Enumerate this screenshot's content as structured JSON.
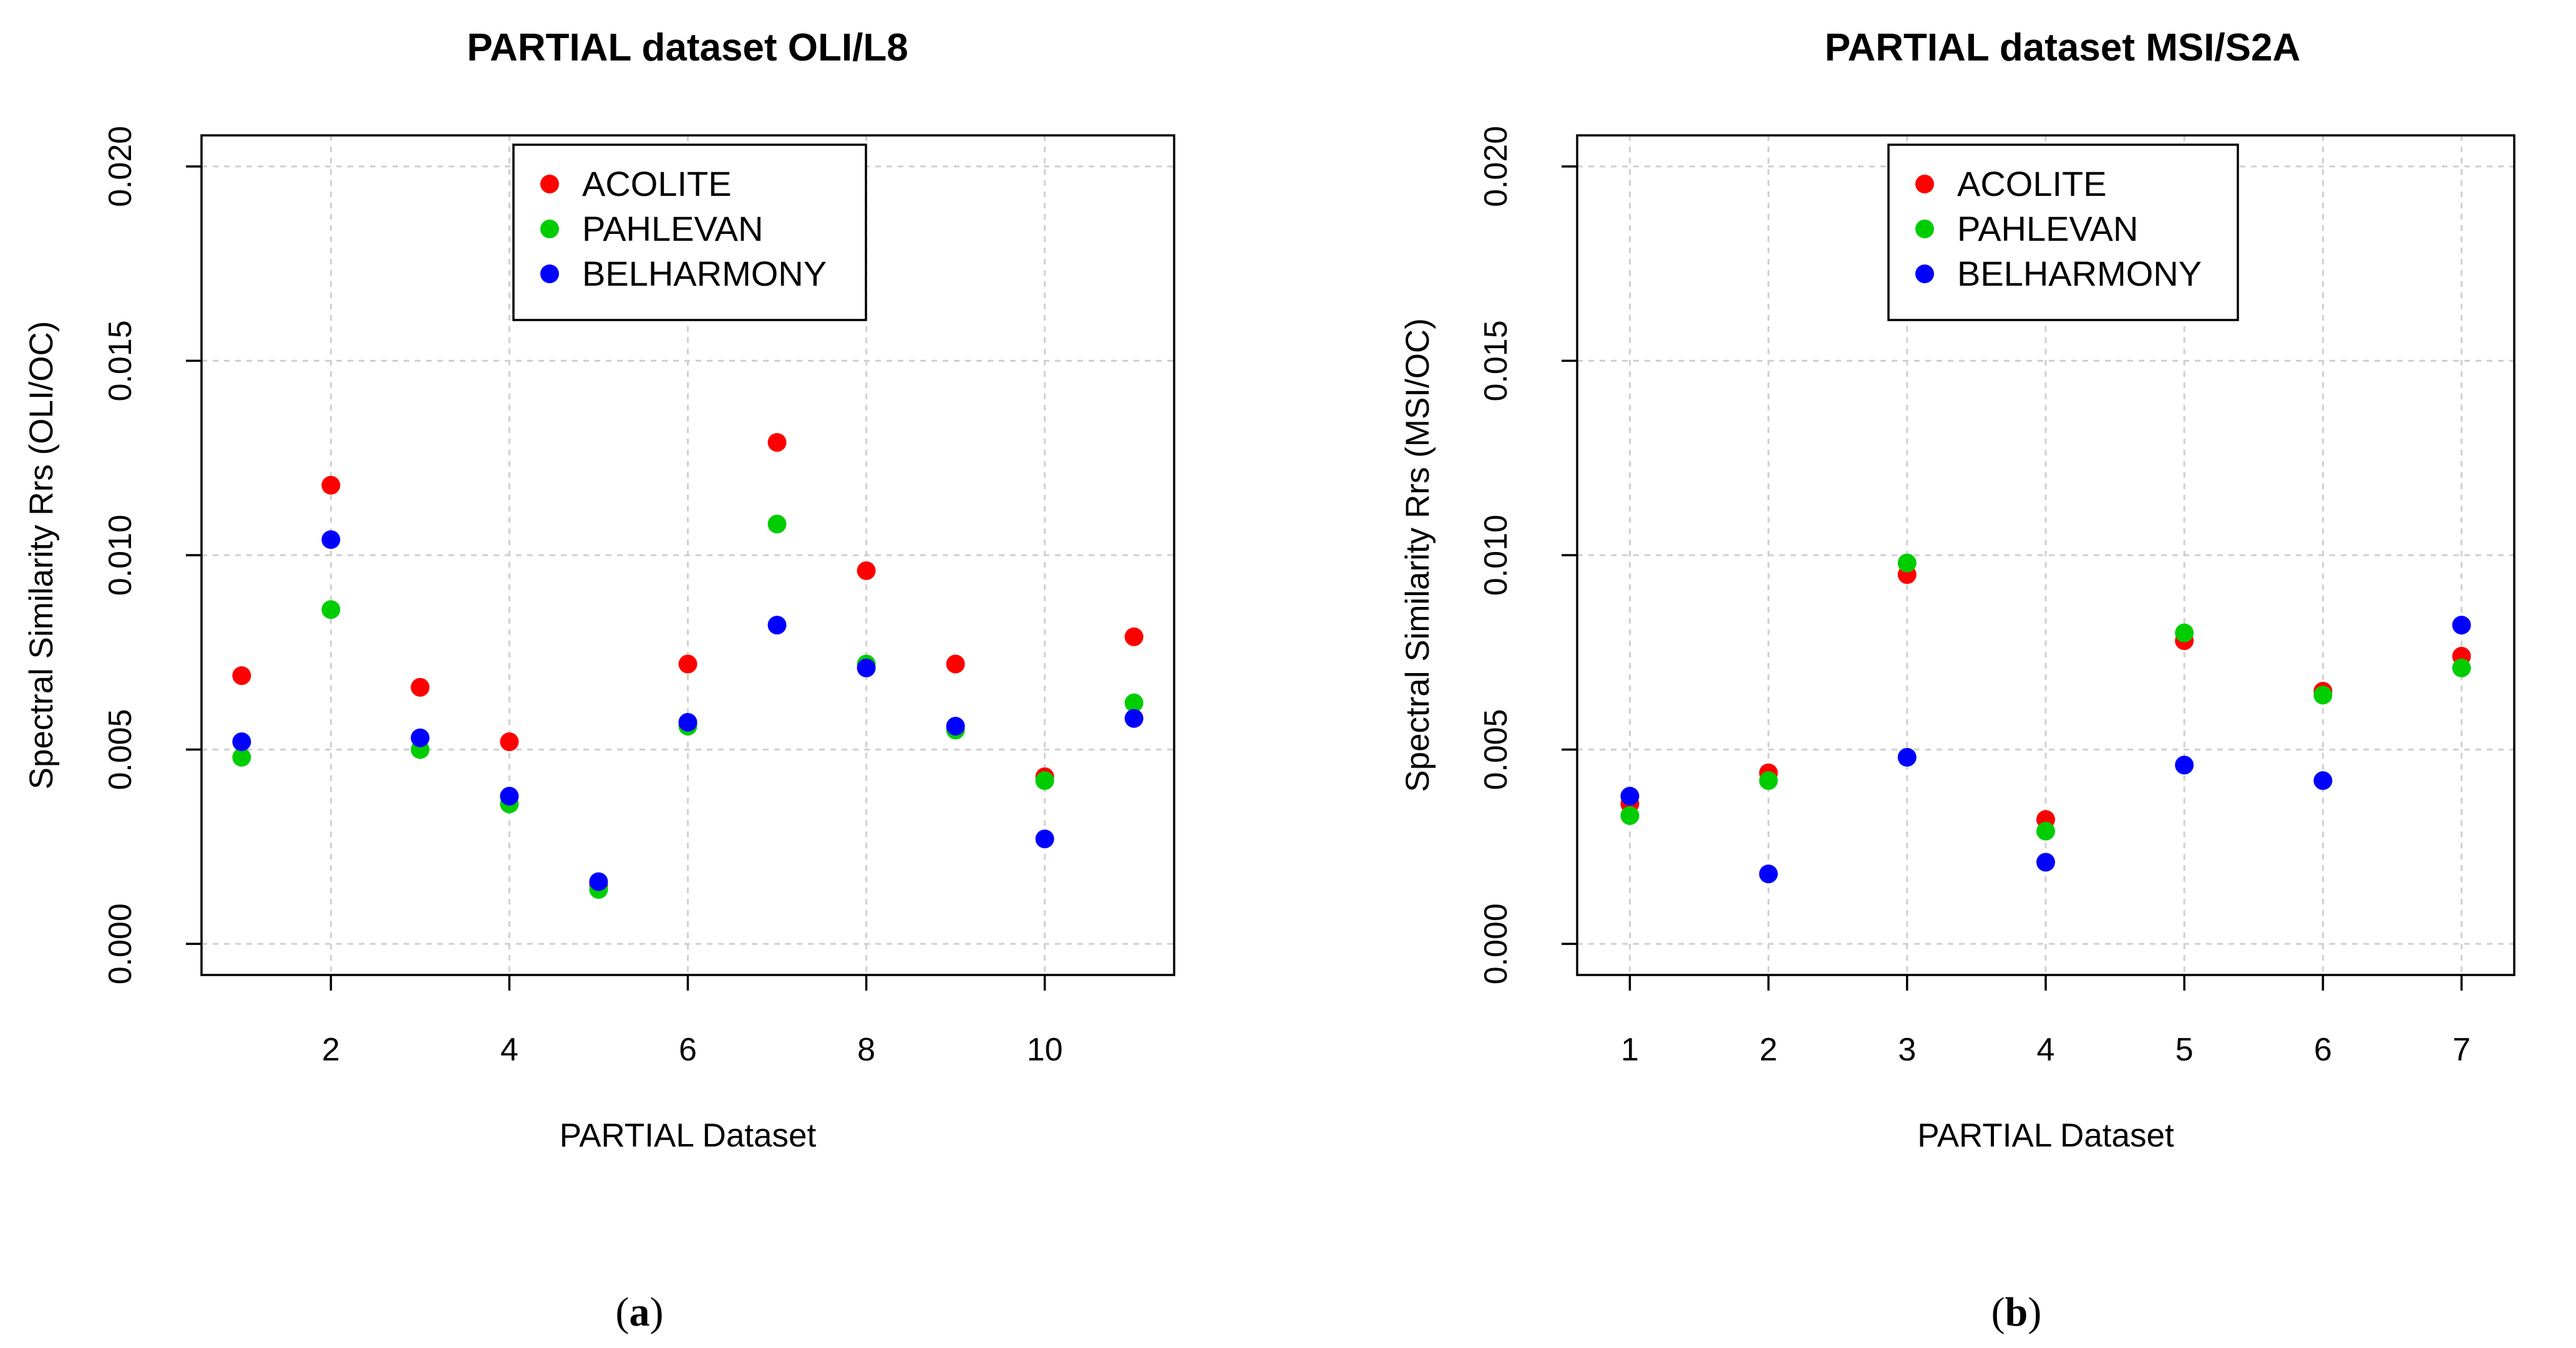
{
  "chart_data": [
    {
      "type": "scatter",
      "title": "PARTIAL dataset OLI/L8",
      "xlabel": "PARTIAL Dataset",
      "ylabel": "Spectral Similarity Rrs (OLI/OC)",
      "caption": "a",
      "xlim": [
        0.55,
        11.45
      ],
      "ylim": [
        -0.0008,
        0.0208
      ],
      "xticks": [
        2,
        4,
        6,
        8,
        10
      ],
      "xtick_labels": [
        "2",
        "4",
        "6",
        "8",
        "10"
      ],
      "yticks": [
        0.0,
        0.005,
        0.01,
        0.015,
        0.02
      ],
      "ytick_labels": [
        "0.000",
        "0.005",
        "0.010",
        "0.015",
        "0.020"
      ],
      "grid": true,
      "legend": {
        "placement": "top-center",
        "entries": [
          "ACOLITE",
          "PAHLEVAN",
          "BELHARMONY"
        ]
      },
      "x": [
        1,
        2,
        3,
        4,
        5,
        6,
        7,
        8,
        9,
        10,
        11
      ],
      "series": [
        {
          "name": "ACOLITE",
          "color": "#ff0000",
          "values": [
            0.0069,
            0.0118,
            0.0066,
            0.0052,
            0.0015,
            0.0072,
            0.0129,
            0.0096,
            0.0072,
            0.0043,
            0.0079
          ]
        },
        {
          "name": "PAHLEVAN",
          "color": "#00cd00",
          "values": [
            0.0048,
            0.0086,
            0.005,
            0.0036,
            0.0014,
            0.0056,
            0.0108,
            0.0072,
            0.0055,
            0.0042,
            0.0062
          ]
        },
        {
          "name": "BELHARMONY",
          "color": "#0000ff",
          "values": [
            0.0052,
            0.0104,
            0.0053,
            0.0038,
            0.0016,
            0.0057,
            0.0082,
            0.0071,
            0.0056,
            0.0027,
            0.0058
          ]
        }
      ]
    },
    {
      "type": "scatter",
      "title": "PARTIAL dataset MSI/S2A",
      "xlabel": "PARTIAL Dataset",
      "ylabel": "Spectral Similarity Rrs (MSI/OC)",
      "caption": "b",
      "xlim": [
        0.62,
        7.38
      ],
      "ylim": [
        -0.0008,
        0.0208
      ],
      "xticks": [
        1,
        2,
        3,
        4,
        5,
        6,
        7
      ],
      "xtick_labels": [
        "1",
        "2",
        "3",
        "4",
        "5",
        "6",
        "7"
      ],
      "yticks": [
        0.0,
        0.005,
        0.01,
        0.015,
        0.02
      ],
      "ytick_labels": [
        "0.000",
        "0.005",
        "0.010",
        "0.015",
        "0.020"
      ],
      "grid": true,
      "legend": {
        "placement": "top-center",
        "entries": [
          "ACOLITE",
          "PAHLEVAN",
          "BELHARMONY"
        ]
      },
      "x": [
        1,
        2,
        3,
        4,
        5,
        6,
        7
      ],
      "series": [
        {
          "name": "ACOLITE",
          "color": "#ff0000",
          "values": [
            0.0036,
            0.0044,
            0.0095,
            0.0032,
            0.0078,
            0.0065,
            0.0074
          ]
        },
        {
          "name": "PAHLEVAN",
          "color": "#00cd00",
          "values": [
            0.0033,
            0.0042,
            0.0098,
            0.0029,
            0.008,
            0.0064,
            0.0071
          ]
        },
        {
          "name": "BELHARMONY",
          "color": "#0000ff",
          "values": [
            0.0038,
            0.0018,
            0.0048,
            0.0021,
            0.0046,
            0.0042,
            0.0082
          ]
        }
      ]
    }
  ]
}
